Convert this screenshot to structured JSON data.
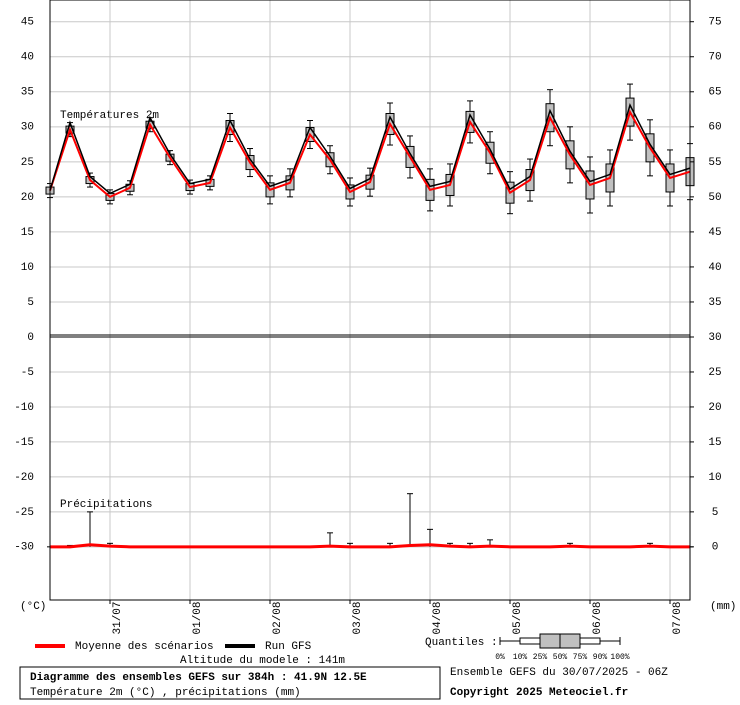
{
  "chart_data": [
    {
      "type": "box",
      "title": "Températures 2m",
      "ylabel": "(°C)",
      "x": [
        0,
        6,
        12,
        18,
        24,
        30,
        36,
        42,
        48,
        54,
        60,
        66,
        72,
        78,
        84,
        90,
        96,
        102,
        108,
        114,
        120,
        126,
        132,
        138,
        144,
        150,
        156,
        162,
        168,
        174,
        180,
        186,
        192
      ],
      "xlim": [
        0,
        192
      ],
      "xticks": [
        {
          "value": 18,
          "label": "31/07"
        },
        {
          "value": 42,
          "label": "01/08"
        },
        {
          "value": 66,
          "label": "02/08"
        },
        {
          "value": 90,
          "label": "03/08"
        },
        {
          "value": 114,
          "label": "04/08"
        },
        {
          "value": 138,
          "label": "05/08"
        },
        {
          "value": 162,
          "label": "06/08"
        },
        {
          "value": 186,
          "label": "07/08"
        }
      ],
      "ylim": [
        0,
        48.1
      ],
      "yticks": [
        5,
        10,
        15,
        20,
        25,
        30,
        35,
        40,
        45
      ],
      "y2lim": [
        30,
        78.1
      ],
      "y2ticks": [
        35,
        40,
        45,
        50,
        55,
        60,
        65,
        70,
        75
      ],
      "grid": true,
      "boxes": {
        "color": "#c0c0c0",
        "low": [
          19.9,
          28.6,
          21.4,
          19,
          20.3,
          29.3,
          24.6,
          20.4,
          21,
          27.9,
          22.9,
          19,
          20,
          26.9,
          23.3,
          18.7,
          20.1,
          27.4,
          22.7,
          18,
          18.7,
          27.7,
          23.3,
          17.6,
          19.4,
          27.3,
          22,
          17.7,
          18.7,
          28.1,
          23,
          18.7,
          19.6
        ],
        "q1": [
          20.4,
          29.1,
          21.9,
          19.5,
          20.8,
          29.8,
          25.1,
          20.9,
          21.5,
          28.9,
          23.9,
          20,
          21,
          27.9,
          24.3,
          19.7,
          21.1,
          28.9,
          24.2,
          19.5,
          20.2,
          29.2,
          24.8,
          19.1,
          20.9,
          29.3,
          24,
          19.7,
          20.7,
          30.1,
          25,
          20.7,
          21.6
        ],
        "q3": [
          21.4,
          30.1,
          22.9,
          20.5,
          21.8,
          30.8,
          26.1,
          21.9,
          22.5,
          30.9,
          25.9,
          22,
          23,
          29.9,
          26.3,
          21.7,
          23.1,
          31.9,
          27.2,
          22.5,
          23.2,
          32.2,
          27.8,
          22.1,
          23.9,
          33.3,
          28,
          23.7,
          24.7,
          34.1,
          29,
          24.7,
          25.6
        ],
        "high": [
          21.9,
          30.6,
          23.4,
          21,
          22.3,
          31.3,
          26.6,
          22.4,
          23,
          31.9,
          26.9,
          23,
          24,
          30.9,
          27.3,
          22.7,
          24.1,
          33.4,
          28.7,
          24,
          24.7,
          33.7,
          29.3,
          23.6,
          25.4,
          35.3,
          30,
          25.7,
          26.7,
          36.1,
          31,
          26.7,
          27.6
        ]
      },
      "series": [
        {
          "name": "Moyenne des scénarios",
          "color": "#ff0000",
          "values": [
            20.9,
            29.6,
            22.4,
            20,
            21.3,
            30.3,
            25.6,
            21.4,
            22,
            29.9,
            24.9,
            21,
            22,
            28.9,
            25.3,
            20.7,
            22.1,
            30.4,
            25.7,
            21,
            21.7,
            30.7,
            26.3,
            20.6,
            22.4,
            31.3,
            26,
            21.7,
            22.7,
            32.1,
            27,
            22.7,
            23.6
          ]
        },
        {
          "name": "Run GFS",
          "color": "#000000",
          "values": [
            20.9,
            30.6,
            22.9,
            20.5,
            21.8,
            31.3,
            26.1,
            21.9,
            22.5,
            30.9,
            25.4,
            21.5,
            22.5,
            29.9,
            25.8,
            21.2,
            22.6,
            31.4,
            26.2,
            21.5,
            22.2,
            31.7,
            26.8,
            21.1,
            22.9,
            32.3,
            26.5,
            22.2,
            23.2,
            33.1,
            27.5,
            23.2,
            24.1
          ]
        }
      ]
    },
    {
      "type": "whisker",
      "title": "Précipitations",
      "y2label": "(mm)",
      "x": [
        0,
        6,
        12,
        18,
        24,
        30,
        36,
        42,
        48,
        54,
        60,
        66,
        72,
        78,
        84,
        90,
        96,
        102,
        108,
        114,
        120,
        126,
        132,
        138,
        144,
        150,
        156,
        162,
        168,
        174,
        180,
        186,
        192
      ],
      "xlim": [
        0,
        192
      ],
      "ylim": [
        -37.6,
        0
      ],
      "yticks": [
        0,
        -5,
        -10,
        -15,
        -20,
        -25,
        -30
      ],
      "y2lim": [
        -7.6,
        30
      ],
      "y2ticks": [
        30,
        25,
        20,
        15,
        10,
        5,
        0
      ],
      "grid": true,
      "series": [
        {
          "color": "#ff0000",
          "axis": "y2",
          "values": [
            0,
            0,
            0.3,
            0.1,
            0,
            0,
            0,
            0,
            0,
            0,
            0,
            0,
            0,
            0,
            0.1,
            0,
            0,
            0,
            0.2,
            0.3,
            0.1,
            0,
            0.1,
            0,
            0,
            0,
            0.1,
            0,
            0,
            0,
            0.1,
            0,
            0
          ],
          "high": [
            0,
            0.2,
            5,
            0.5,
            0,
            0,
            0,
            0,
            0,
            0,
            0,
            0,
            0,
            0,
            2,
            0.5,
            0,
            0.5,
            7.6,
            2.5,
            0.5,
            0.5,
            1,
            0,
            0,
            0,
            0.5,
            0,
            0,
            0,
            0.5,
            0,
            0
          ]
        }
      ]
    }
  ],
  "legend": {
    "quantiles_label": "Quantiles :",
    "quantiles": [
      "0%",
      "10%",
      "25%",
      "50%",
      "75%",
      "90%",
      "100%"
    ]
  },
  "footer": {
    "altitude": "Altitude du modele : 141m",
    "title": "Diagramme des ensembles GEFS sur 384h : 41.9N 12.5E",
    "subtitle": "Température 2m (°C) , précipitations (mm)",
    "run": "Ensemble GEFS du 30/07/2025 - 06Z",
    "copyright": "Copyright 2025 Meteociel.fr"
  }
}
